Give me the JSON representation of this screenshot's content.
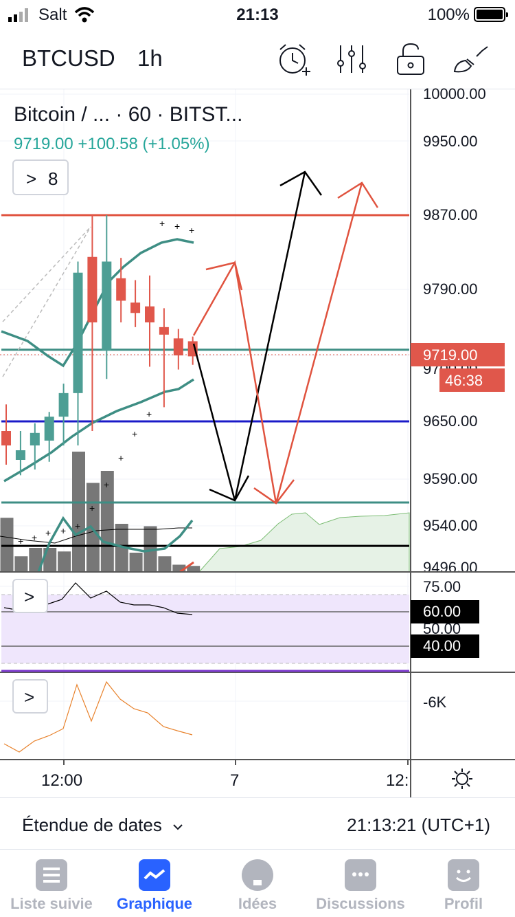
{
  "status_bar": {
    "carrier": "Salt",
    "time": "21:13",
    "battery": "100%"
  },
  "toolbar": {
    "symbol": "BTCUSD",
    "interval": "1h",
    "icons": [
      "alarm-add-icon",
      "indicators-icon",
      "lock-icon",
      "drawing-tools-icon"
    ]
  },
  "legend": {
    "title": "Bitcoin / ... · 60 · BITST...",
    "values": "9719.00  +100.58 (+1.05%)",
    "indicators_count": "8",
    "chevron": ">"
  },
  "price_axis": {
    "labels": [
      "10000.00",
      "9950.00",
      "9870.00",
      "9790.00",
      "9650.00",
      "9590.00",
      "9540.00",
      "9496.00"
    ],
    "last_price": "9719.00",
    "countdown": "46:38",
    "hidden_label": "9700.00"
  },
  "rsi_axis": {
    "top": "75.00",
    "upper": "60.00",
    "mid": "50.00",
    "lower": "40.00"
  },
  "osc_axis": {
    "label": "-6K"
  },
  "time_axis": {
    "labels": [
      "12:00",
      "7",
      "12:"
    ]
  },
  "chart_data": {
    "type": "candlestick",
    "symbol": "BTCUSD",
    "interval": "60",
    "exchange": "BITSTAMP",
    "last": 9719.0,
    "change": 100.58,
    "change_pct": 1.05,
    "candles": [
      {
        "o": 9640,
        "h": 9668,
        "l": 9605,
        "c": 9625
      },
      {
        "o": 9610,
        "h": 9640,
        "l": 9594,
        "c": 9620
      },
      {
        "o": 9625,
        "h": 9648,
        "l": 9600,
        "c": 9638
      },
      {
        "o": 9630,
        "h": 9660,
        "l": 9608,
        "c": 9655
      },
      {
        "o": 9655,
        "h": 9690,
        "l": 9625,
        "c": 9680
      },
      {
        "o": 9680,
        "h": 9820,
        "l": 9625,
        "c": 9808
      },
      {
        "o": 9825,
        "h": 9870,
        "l": 9640,
        "c": 9755
      },
      {
        "o": 9725,
        "h": 9870,
        "l": 9695,
        "c": 9820
      },
      {
        "o": 9802,
        "h": 9824,
        "l": 9755,
        "c": 9778
      },
      {
        "o": 9776,
        "h": 9800,
        "l": 9750,
        "c": 9765
      },
      {
        "o": 9772,
        "h": 9805,
        "l": 9708,
        "c": 9755
      },
      {
        "o": 9750,
        "h": 9770,
        "l": 9665,
        "c": 9742
      },
      {
        "o": 9738,
        "h": 9748,
        "l": 9705,
        "c": 9720
      },
      {
        "o": 9735,
        "h": 9740,
        "l": 9710,
        "c": 9719
      }
    ],
    "volume": [
      0.45,
      0.13,
      0.2,
      0.2,
      0.17,
      1.0,
      0.74,
      0.84,
      0.4,
      0.16,
      0.38,
      0.13,
      0.06,
      0.05
    ],
    "horizontal_lines": [
      {
        "price": 9870,
        "color": "#e0533f"
      },
      {
        "price": 9726,
        "color": "#3e8e84"
      },
      {
        "price": 9650,
        "color": "#1a1ac8"
      },
      {
        "price": 9565,
        "color": "#3e8e84"
      },
      {
        "price": 9519,
        "color": "#000000"
      }
    ],
    "rsi": [
      62,
      60,
      64,
      72,
      66,
      68,
      62,
      60,
      60,
      57,
      55
    ]
  },
  "bottom": {
    "date_range": "Étendue de dates",
    "clock": "21:13:21 (UTC+1)"
  },
  "tabs": [
    {
      "label": "Liste suivie",
      "icon": "watchlist-icon"
    },
    {
      "label": "Graphique",
      "icon": "chart-icon"
    },
    {
      "label": "Idées",
      "icon": "ideas-icon"
    },
    {
      "label": "Discussions",
      "icon": "chat-icon"
    },
    {
      "label": "Profil",
      "icon": "profile-icon"
    }
  ],
  "colors": {
    "up": "#4d9e94",
    "down": "#e0574b",
    "active_tab": "#2962ff",
    "inactive_tab": "#b2b5be"
  }
}
